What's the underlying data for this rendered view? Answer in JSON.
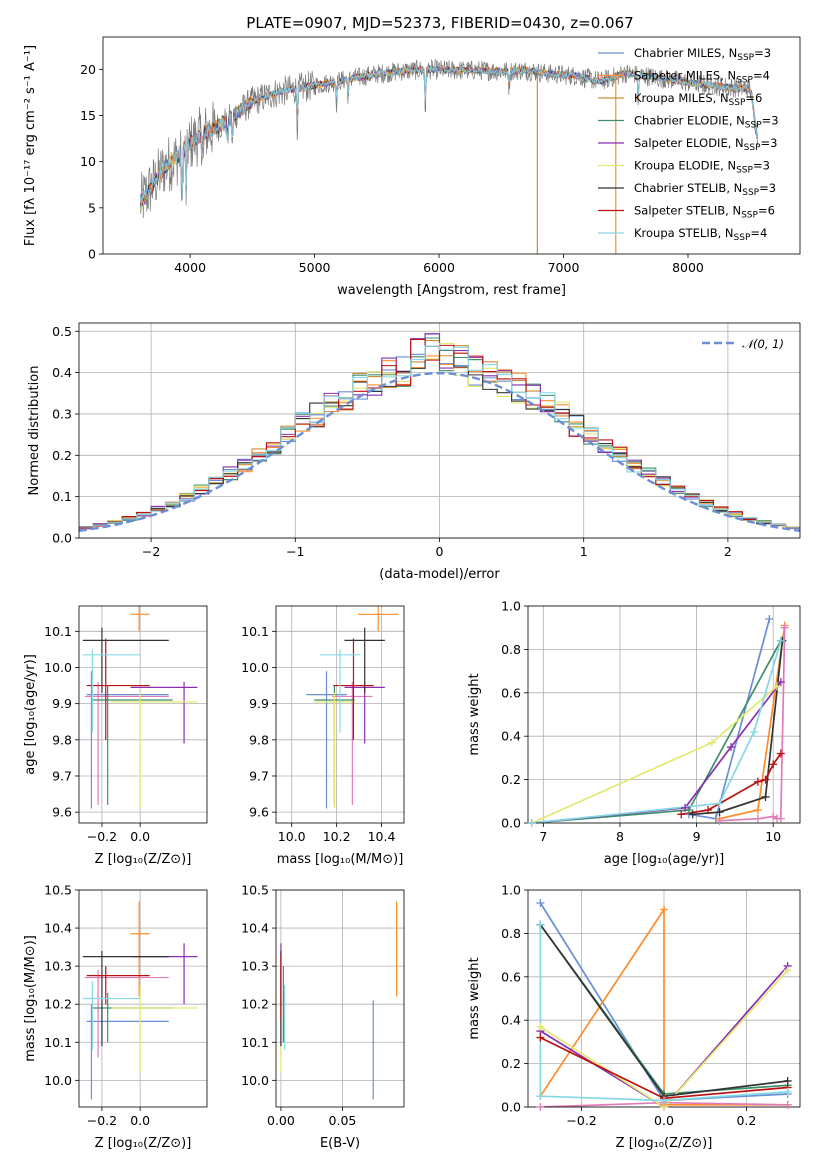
{
  "figure": {
    "title": "PLATE=0907, MJD=52373, FIBERID=0430, z=0.067"
  },
  "colors": {
    "Chabrier MILES": "#6a8fd6",
    "Salpeter MILES": "#ff8c2a",
    "Kroupa MILES": "#c8903a",
    "Chabrier ELODIE": "#3f8f6a",
    "Salpeter ELODIE": "#8a2fb0",
    "Kroupa ELODIE": "#e4e870",
    "Chabrier STELIB": "#333333",
    "Salpeter STELIB": "#bb1111",
    "Kroupa STELIB": "#86d8e6",
    "gaussian": "#6a8fd6"
  },
  "chart_data": [
    {
      "panel": "spectrum",
      "type": "line",
      "xlabel": "wavelength [Angstrom, rest frame]",
      "ylabel": "Flux [fλ 10⁻¹⁷ erg cm⁻² s⁻¹ A⁻¹]",
      "xlim": [
        3300,
        8900
      ],
      "ylim": [
        0,
        23.5
      ],
      "xticks": [
        4000,
        5000,
        6000,
        7000,
        8000
      ],
      "yticks": [
        0,
        5,
        10,
        15,
        20
      ],
      "grid": false,
      "legend_position": "top-right",
      "legend": [
        {
          "label": "Chabrier MILES, N",
          "sub": "SSP",
          "value": "=3"
        },
        {
          "label": "Salpeter MILES, N",
          "sub": "SSP",
          "value": "=4"
        },
        {
          "label": "Kroupa MILES, N",
          "sub": "SSP",
          "value": "=6"
        },
        {
          "label": "Chabrier ELODIE, N",
          "sub": "SSP",
          "value": "=3"
        },
        {
          "label": "Salpeter ELODIE, N",
          "sub": "SSP",
          "value": "=3"
        },
        {
          "label": "Kroupa ELODIE, N",
          "sub": "SSP",
          "value": "=3"
        },
        {
          "label": "Chabrier STELIB, N",
          "sub": "SSP",
          "value": "=3"
        },
        {
          "label": "Salpeter STELIB, N",
          "sub": "SSP",
          "value": "=6"
        },
        {
          "label": "Kroupa STELIB, N",
          "sub": "SSP",
          "value": "=4"
        }
      ],
      "continuum": {
        "x": [
          3600,
          3700,
          3800,
          3900,
          4000,
          4100,
          4200,
          4300,
          4400,
          4500,
          4700,
          4900,
          5100,
          5300,
          5500,
          5700,
          5900,
          6100,
          6300,
          6500,
          6700,
          6900,
          7100,
          7300,
          7500,
          7700,
          7900,
          8100,
          8300,
          8500,
          8560
        ],
        "y": [
          5.5,
          7.5,
          9.5,
          10.5,
          12.0,
          13.0,
          13.6,
          14.5,
          15.5,
          16.5,
          17.5,
          18.0,
          18.5,
          19.0,
          19.5,
          19.8,
          20.0,
          19.9,
          19.9,
          19.8,
          19.9,
          19.5,
          19.3,
          18.7,
          19.6,
          19.2,
          18.8,
          18.4,
          18.1,
          17.9,
          12.5
        ]
      }
    },
    {
      "panel": "residuals",
      "type": "line",
      "xlabel": "(data-model)/error",
      "ylabel": "Normed distribution",
      "xlim": [
        -2.5,
        2.5
      ],
      "ylim": [
        0,
        0.52
      ],
      "xticks": [
        -2,
        -1,
        0,
        1,
        2
      ],
      "yticks": [
        0.0,
        0.1,
        0.2,
        0.3,
        0.4,
        0.5
      ],
      "grid": true,
      "legend_position": "top-right",
      "legend_label": "𝒩(0, 1)"
    },
    {
      "panel": "age-vs-Z",
      "type": "scatter",
      "xlabel": "Z [log₁₀(Z/Z⊙)]",
      "ylabel": "age  [log₁₀(age/yr)]",
      "xlim": [
        -0.32,
        0.35
      ],
      "ylim": [
        9.57,
        10.17
      ],
      "xticks": [
        -0.2,
        0.0
      ],
      "yticks": [
        9.6,
        9.7,
        9.8,
        9.9,
        10.0,
        10.1
      ],
      "grid": true
    },
    {
      "panel": "age-vs-mass",
      "type": "scatter",
      "xlabel": "mass [log₁₀(M/M⊙)]",
      "ylabel": "",
      "xlim": [
        9.93,
        10.5
      ],
      "ylim": [
        9.57,
        10.17
      ],
      "xticks": [
        10.0,
        10.2,
        10.4
      ],
      "yticks": [
        9.6,
        9.7,
        9.8,
        9.9,
        10.0,
        10.1
      ],
      "grid": true
    },
    {
      "panel": "massweight-vs-age",
      "type": "line",
      "xlabel": "age  [log₁₀(age/yr)]",
      "ylabel": "mass weight",
      "xlim": [
        6.8,
        10.35
      ],
      "ylim": [
        0,
        1.0
      ],
      "xticks": [
        7,
        8,
        9,
        10
      ],
      "yticks": [
        0.0,
        0.2,
        0.4,
        0.6,
        0.8,
        1.0
      ],
      "grid": true,
      "series": [
        {
          "model": "Chabrier MILES",
          "x": [
            8.9,
            9.25,
            9.95
          ],
          "y": [
            0.04,
            0.02,
            0.94
          ]
        },
        {
          "model": "Salpeter MILES",
          "x": [
            9.3,
            9.8,
            10.15
          ],
          "y": [
            0.02,
            0.06,
            0.91
          ]
        },
        {
          "model": "Kroupa MILES",
          "x": [
            9.3,
            9.8,
            10.0,
            10.05,
            10.1,
            10.15
          ],
          "y": [
            0.01,
            0.02,
            0.03,
            0.02,
            0.02,
            0.9
          ]
        },
        {
          "model": "Chabrier ELODIE",
          "x": [
            6.85,
            8.9,
            10.1
          ],
          "y": [
            0.0,
            0.06,
            0.84
          ]
        },
        {
          "model": "Salpeter ELODIE",
          "x": [
            6.85,
            8.85,
            9.45,
            10.1
          ],
          "y": [
            0.0,
            0.07,
            0.35,
            0.65
          ]
        },
        {
          "model": "Kroupa ELODIE",
          "x": [
            6.85,
            9.2,
            10.05
          ],
          "y": [
            0.0,
            0.37,
            0.63
          ]
        },
        {
          "model": "Chabrier STELIB",
          "x": [
            8.95,
            9.3,
            9.9,
            10.12
          ],
          "y": [
            0.04,
            0.05,
            0.12,
            0.84
          ]
        },
        {
          "model": "Salpeter STELIB",
          "x": [
            8.8,
            9.15,
            9.8,
            9.9,
            10.0,
            10.1
          ],
          "y": [
            0.04,
            0.06,
            0.19,
            0.2,
            0.27,
            0.32
          ]
        },
        {
          "model": "Kroupa STELIB",
          "x": [
            6.85,
            9.3,
            9.75,
            10.1
          ],
          "y": [
            0.0,
            0.09,
            0.42,
            0.84
          ]
        }
      ]
    },
    {
      "panel": "mass-vs-Z",
      "type": "scatter",
      "xlabel": "Z [log₁₀(Z/Z⊙)]",
      "ylabel": "mass [log₁₀(M/M⊙)]",
      "xlim": [
        -0.32,
        0.35
      ],
      "ylim": [
        9.93,
        10.5
      ],
      "xticks": [
        -0.2,
        0.0
      ],
      "yticks": [
        10.0,
        10.1,
        10.2,
        10.3,
        10.4,
        10.5
      ],
      "grid": true
    },
    {
      "panel": "mass-vs-ebv",
      "type": "scatter",
      "xlabel": "E(B-V)",
      "ylabel": "",
      "xlim": [
        -0.004,
        0.1
      ],
      "ylim": [
        9.93,
        10.5
      ],
      "xticks": [
        0.0,
        0.05
      ],
      "yticks": [
        10.0,
        10.1,
        10.2,
        10.3,
        10.4,
        10.5
      ],
      "grid": true
    },
    {
      "panel": "massweight-vs-Z",
      "type": "line",
      "xlabel": "Z [log₁₀(Z/Z⊙)]",
      "ylabel": "mass weight",
      "xlim": [
        -0.33,
        0.33
      ],
      "ylim": [
        0,
        1.0
      ],
      "xticks": [
        -0.2,
        0.0,
        0.2
      ],
      "yticks": [
        0.0,
        0.2,
        0.4,
        0.6,
        0.8,
        1.0
      ],
      "grid": true,
      "series": [
        {
          "model": "Chabrier MILES",
          "x": [
            -0.3,
            0.0,
            0.3
          ],
          "y": [
            0.94,
            0.03,
            0.06
          ]
        },
        {
          "model": "Salpeter MILES",
          "x": [
            -0.3,
            0.0,
            0.0,
            0.3
          ],
          "y": [
            0.05,
            0.91,
            0.01,
            0.01
          ]
        },
        {
          "model": "Kroupa MILES",
          "x": [
            -0.3,
            0.0,
            0.3
          ],
          "y": [
            0.0,
            0.02,
            0.01
          ]
        },
        {
          "model": "Chabrier ELODIE",
          "x": [
            -0.3,
            0.0,
            0.3
          ],
          "y": [
            0.84,
            0.06,
            0.1
          ]
        },
        {
          "model": "Salpeter ELODIE",
          "x": [
            -0.3,
            0.0,
            0.3
          ],
          "y": [
            0.35,
            0.0,
            0.65
          ]
        },
        {
          "model": "Kroupa ELODIE",
          "x": [
            -0.3,
            0.0,
            0.3
          ],
          "y": [
            0.37,
            0.0,
            0.63
          ]
        },
        {
          "model": "Chabrier STELIB",
          "x": [
            -0.3,
            0.0,
            0.3
          ],
          "y": [
            0.84,
            0.05,
            0.12
          ]
        },
        {
          "model": "Salpeter STELIB",
          "x": [
            -0.3,
            0.0,
            0.3
          ],
          "y": [
            0.32,
            0.04,
            0.09
          ]
        },
        {
          "model": "Kroupa STELIB",
          "x": [
            -0.3,
            -0.3,
            0.0,
            0.3
          ],
          "y": [
            0.84,
            0.05,
            0.03,
            0.07
          ]
        }
      ]
    }
  ]
}
